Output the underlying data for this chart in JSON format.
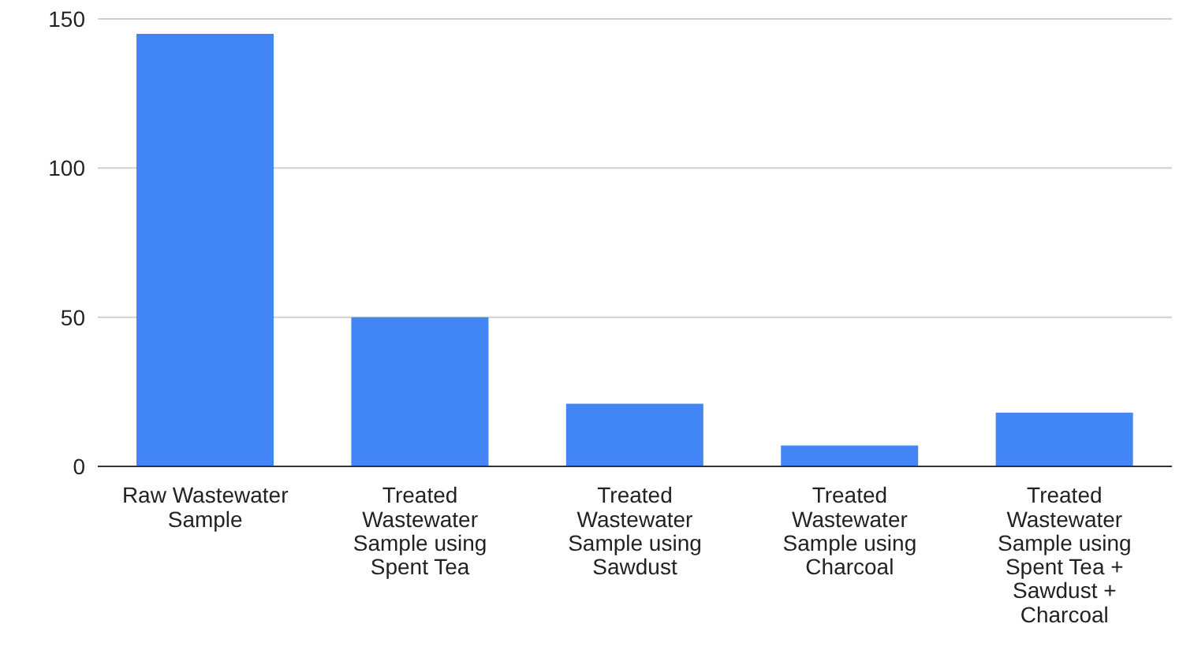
{
  "chart_data": {
    "type": "bar",
    "categories": [
      "Raw Wastewater Sample",
      "Treated Wastewater Sample using Spent Tea",
      "Treated Wastewater Sample using Sawdust",
      "Treated Wastewater Sample using Charcoal",
      "Treated Wastewater Sample using Spent Tea + Sawdust + Charcoal"
    ],
    "values": [
      145,
      50,
      21,
      7,
      18
    ],
    "color": "#4285f4",
    "ylim": [
      0,
      150
    ],
    "yticks": [
      0,
      50,
      100,
      150
    ],
    "grid": "y"
  }
}
